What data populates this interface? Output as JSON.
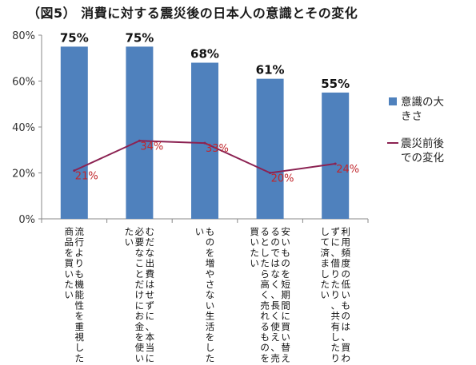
{
  "title": "（図5） 消費に対する震災後の日本人の意識とその変化",
  "chart_data": {
    "type": "bar",
    "categories": [
      "流行よりも機能性を重視した商品を買いたい",
      "むだな出費はせずに、本当に必要なことだけにお金を使いたい",
      "ものを増やさない生活をしたい",
      "安いものを短期間に買い替えるのではなく、長く使え、売るとしたら高く売れるものを買いたい",
      "利用頻度の低いものは、買わずに、借りたり、共有したりして済ましたい"
    ],
    "series": [
      {
        "name": "意識の大きさ",
        "type": "bar",
        "color": "#4f81bd",
        "values": [
          75,
          75,
          68,
          61,
          55
        ],
        "labels": [
          "75%",
          "75%",
          "68%",
          "61%",
          "55%"
        ]
      },
      {
        "name": "震災前後での変化",
        "type": "line",
        "color": "#8b2252",
        "values": [
          21,
          34,
          33,
          20,
          24
        ],
        "labels": [
          "21%",
          "34%",
          "33%",
          "20%",
          "24%"
        ]
      }
    ],
    "ylim": [
      0,
      80
    ],
    "yticks": [
      "0%",
      "20%",
      "40%",
      "60%",
      "80%"
    ],
    "legend_position": "right",
    "grid": false
  }
}
